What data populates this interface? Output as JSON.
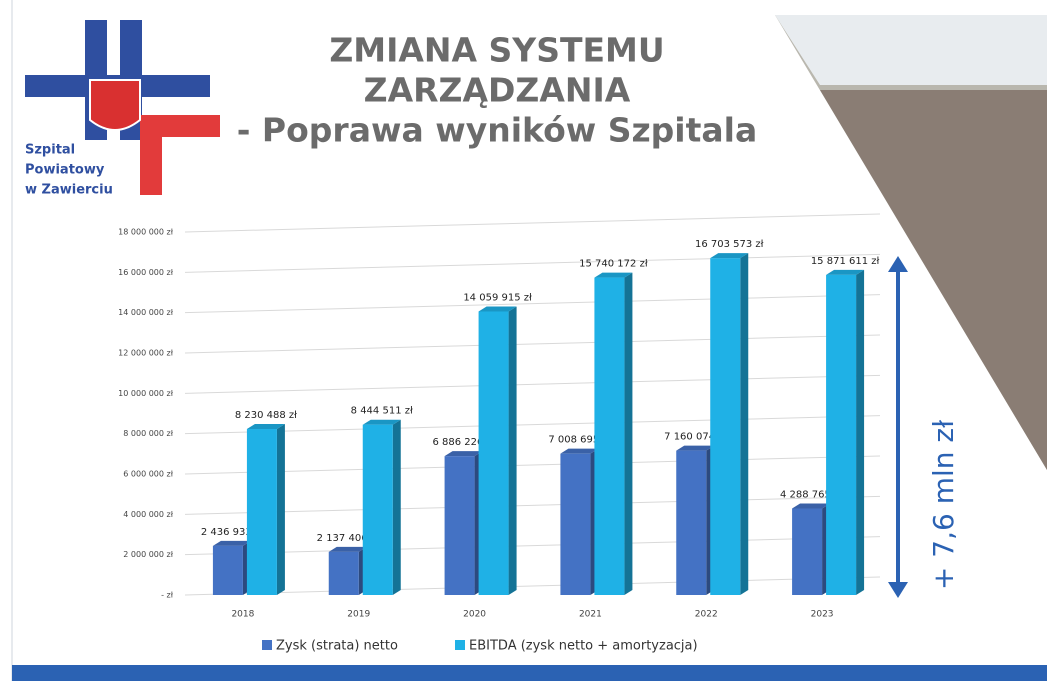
{
  "logo": {
    "lines": [
      "Szpital",
      "Powiatowy",
      "w Zawierciu"
    ]
  },
  "header": {
    "title_lines": [
      "ZMIANA SYSTEMU",
      "ZARZĄDZANIA",
      "- Poprawa wyników Szpitala"
    ]
  },
  "chart_data": {
    "type": "bar",
    "categories": [
      "2018",
      "2019",
      "2020",
      "2021",
      "2022",
      "2023"
    ],
    "series": [
      {
        "name": "Zysk (strata) netto",
        "color": "#4472c4",
        "values": [
          2436933,
          2137406,
          6886226,
          7008695,
          7160074,
          4288765
        ],
        "value_labels": [
          "2 436 933 zł",
          "2 137 406 zł",
          "6 886 226 zł",
          "7 008 695 zł",
          "7 160 074 zł",
          "4 288 765 zł"
        ]
      },
      {
        "name": "EBITDA (zysk netto + amortyzacja)",
        "color": "#1fb1e6",
        "values": [
          8230488,
          8444511,
          14059915,
          15740172,
          16703573,
          15871611
        ],
        "value_labels": [
          "8 230 488 zł",
          "8 444 511 zł",
          "14 059 915 zł",
          "15 740 172 zł",
          "16 703 573 zł",
          "15 871 611 zł"
        ]
      }
    ],
    "ylim": [
      0,
      18000000
    ],
    "yticks": [
      {
        "value": 0,
        "label": "- zł"
      },
      {
        "value": 2000000,
        "label": "2 000 000 zł"
      },
      {
        "value": 4000000,
        "label": "4 000 000 zł"
      },
      {
        "value": 6000000,
        "label": "6 000 000 zł"
      },
      {
        "value": 8000000,
        "label": "8 000 000 zł"
      },
      {
        "value": 10000000,
        "label": "10 000 000 zł"
      },
      {
        "value": 12000000,
        "label": "12 000 000 zł"
      },
      {
        "value": 14000000,
        "label": "14 000 000 zł"
      },
      {
        "value": 16000000,
        "label": "16 000 000 zł"
      },
      {
        "value": 18000000,
        "label": "18 000 000 zł"
      }
    ],
    "grid": true,
    "annotation": "+ 7,6 mln zł"
  }
}
